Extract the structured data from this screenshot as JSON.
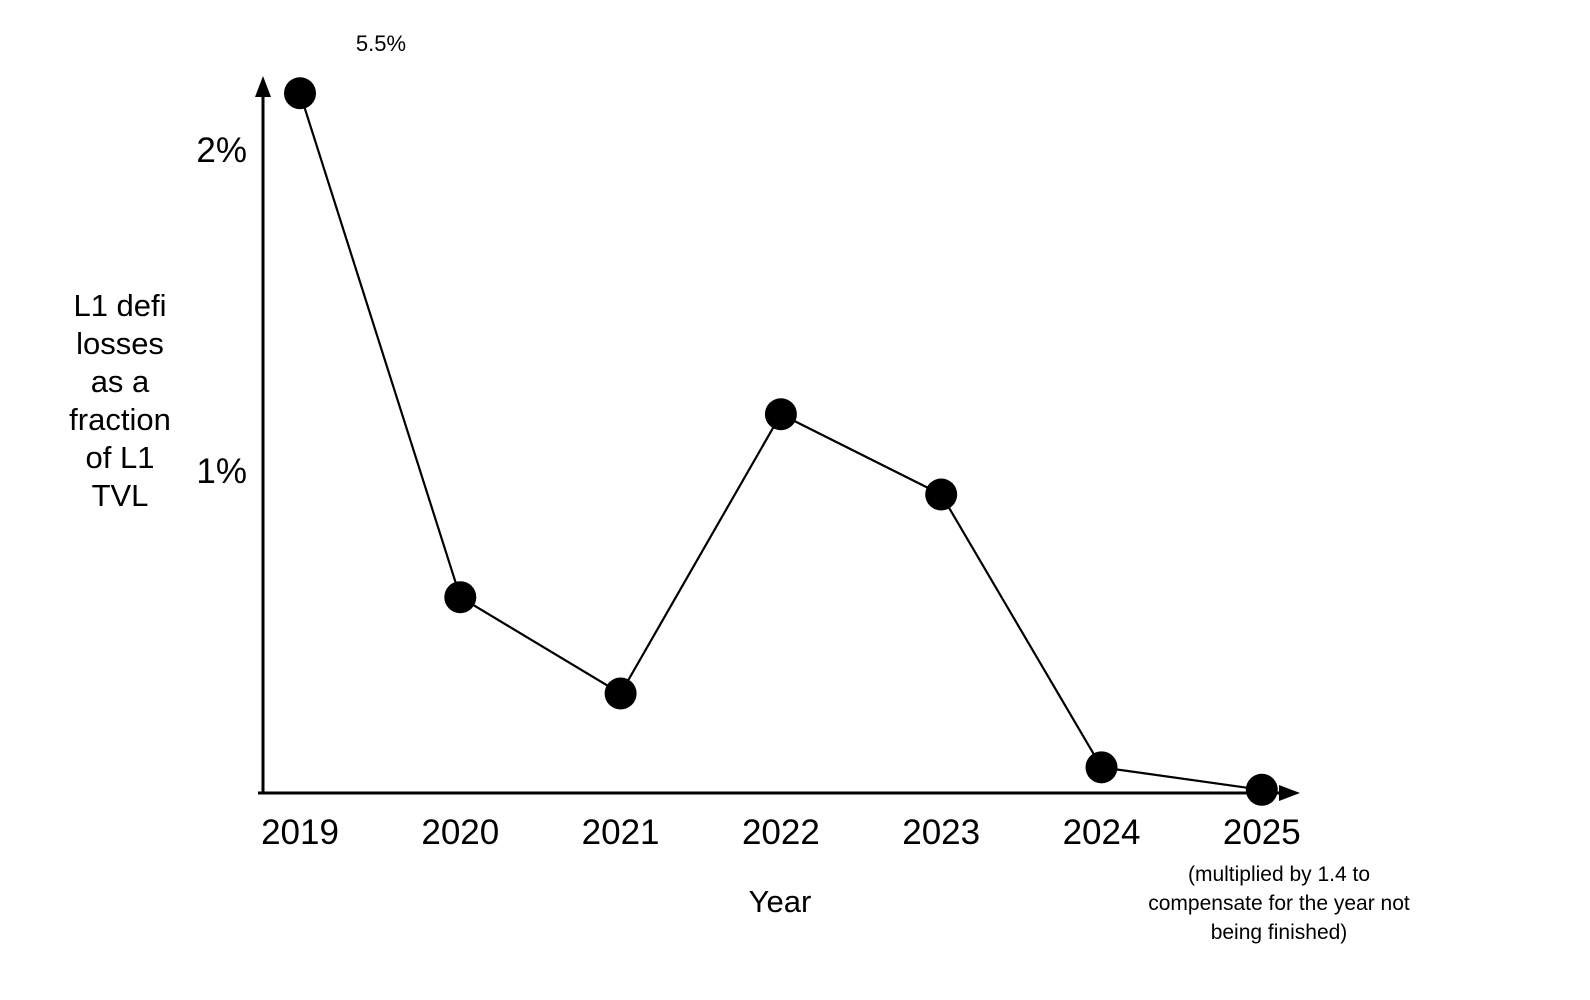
{
  "chart_data": {
    "type": "line",
    "title": "",
    "xlabel": "Year",
    "ylabel": "L1 defi losses as a fraction of L1 TVL",
    "ylabel_lines": [
      "L1 defi",
      "losses",
      "as a",
      "fraction",
      "of L1",
      "TVL"
    ],
    "categories": [
      "2019",
      "2020",
      "2021",
      "2022",
      "2023",
      "2024",
      "2025"
    ],
    "values": [
      5.5,
      0.61,
      0.31,
      1.18,
      0.93,
      0.08,
      0.01
    ],
    "unit": "%",
    "ylim": [
      0,
      2.18
    ],
    "yticks": [
      {
        "value": 2,
        "label": "2%"
      },
      {
        "value": 1,
        "label": "1%"
      }
    ],
    "grid": false,
    "legend": "none",
    "marker": "filled-circle",
    "line_color": "#000000",
    "marker_color": "#000000",
    "axis_color": "#000000",
    "text_color": "#000000",
    "background_color": "#ffffff",
    "clipped_point": {
      "year": "2019",
      "true_value": 5.5,
      "plotted_at": 2.18,
      "label": "5.5%"
    },
    "x_axis_note": {
      "attached_to": "2025",
      "lines": [
        "(multiplied by 1.4 to",
        "compensate for the year not",
        "being finished)"
      ]
    }
  }
}
